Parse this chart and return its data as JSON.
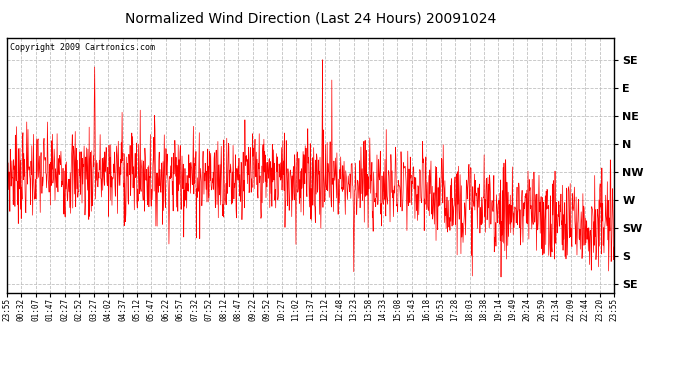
{
  "title": "Normalized Wind Direction (Last 24 Hours) 20091024",
  "copyright": "Copyright 2009 Cartronics.com",
  "line_color": "#ff0000",
  "bg_color": "#ffffff",
  "grid_color": "#bbbbbb",
  "ytick_labels": [
    "SE",
    "S",
    "SW",
    "W",
    "NW",
    "N",
    "NE",
    "E",
    "SE"
  ],
  "ytick_values": [
    0,
    1,
    2,
    3,
    4,
    5,
    6,
    7,
    8
  ],
  "ylim": [
    -0.3,
    8.8
  ],
  "xtick_labels": [
    "23:55",
    "00:32",
    "01:07",
    "01:47",
    "02:27",
    "02:52",
    "03:27",
    "04:02",
    "04:37",
    "05:12",
    "05:47",
    "06:22",
    "06:57",
    "07:32",
    "07:52",
    "08:12",
    "08:47",
    "09:22",
    "09:52",
    "10:27",
    "11:02",
    "11:37",
    "12:12",
    "12:48",
    "13:23",
    "13:58",
    "14:33",
    "15:08",
    "15:43",
    "16:18",
    "16:53",
    "17:28",
    "18:03",
    "18:38",
    "19:14",
    "19:49",
    "20:24",
    "20:59",
    "21:34",
    "22:09",
    "22:44",
    "23:20",
    "23:55"
  ],
  "n_points": 1440,
  "seed": 7
}
